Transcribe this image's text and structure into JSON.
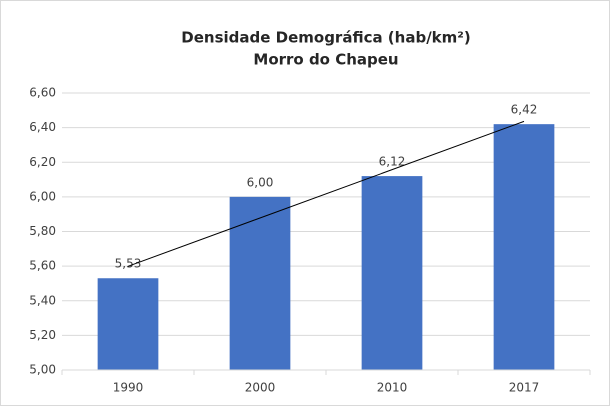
{
  "chart_data": {
    "type": "bar",
    "title": [
      "Densidade Demográfica (hab/km²)",
      "Morro do Chapeu"
    ],
    "categories": [
      "1990",
      "2000",
      "2010",
      "2017"
    ],
    "values": [
      5.53,
      6.0,
      6.12,
      6.42
    ],
    "value_labels": [
      "5,53",
      "6,00",
      "6,12",
      "6,42"
    ],
    "color": "#4472c4",
    "trendline": "linear",
    "ylim": [
      5.0,
      6.6
    ],
    "yticks": [
      {
        "value": 5.0,
        "label": "5,00"
      },
      {
        "value": 5.2,
        "label": "5,20"
      },
      {
        "value": 5.4,
        "label": "5,40"
      },
      {
        "value": 5.6,
        "label": "5,60"
      },
      {
        "value": 5.8,
        "label": "5,80"
      },
      {
        "value": 6.0,
        "label": "6,00"
      },
      {
        "value": 6.2,
        "label": "6,20"
      },
      {
        "value": 6.4,
        "label": "6,40"
      },
      {
        "value": 6.6,
        "label": "6,60"
      }
    ],
    "grid": true
  }
}
